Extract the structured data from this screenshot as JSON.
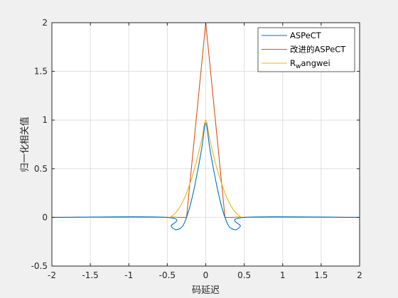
{
  "chart_data": {
    "type": "line",
    "xlabel": "码延迟",
    "ylabel": "归一化相关值",
    "xlim": [
      -2,
      2
    ],
    "ylim": [
      -0.5,
      2
    ],
    "xticks": [
      -2,
      -1.5,
      -1,
      -0.5,
      0,
      0.5,
      1,
      1.5,
      2
    ],
    "xtick_labels": [
      "-2",
      "-1.5",
      "-1",
      "-0.5",
      "0",
      "0.5",
      "1",
      "1.5",
      "2"
    ],
    "yticks": [
      -0.5,
      0,
      0.5,
      1,
      1.5,
      2
    ],
    "ytick_labels": [
      "-0.5",
      "0",
      "0.5",
      "1",
      "1.5",
      "2"
    ],
    "grid": true,
    "legend_position": "top-right",
    "series": [
      {
        "name": "ASPeCT",
        "color": "#0072BD",
        "x": [
          -2,
          -0.5,
          -0.45,
          -0.4,
          -0.375,
          -0.35,
          -0.3,
          -0.25,
          -0.2,
          -0.15,
          -0.1,
          -0.05,
          0,
          0.05,
          0.1,
          0.15,
          0.2,
          0.25,
          0.3,
          0.35,
          0.375,
          0.4,
          0.45,
          0.5,
          2
        ],
        "y": [
          0,
          0,
          -0.09,
          -0.125,
          -0.125,
          -0.12,
          -0.09,
          0,
          0.13,
          0.3,
          0.5,
          0.72,
          0.97,
          0.72,
          0.5,
          0.3,
          0.13,
          0,
          -0.09,
          -0.12,
          -0.125,
          -0.125,
          -0.09,
          0,
          0
        ]
      },
      {
        "name": "改进的ASPeCT",
        "color": "#D95319",
        "x": [
          -2,
          -0.25,
          0,
          0.25,
          2
        ],
        "y": [
          0,
          0,
          2,
          0,
          0
        ]
      },
      {
        "name": "R_wangwei",
        "color": "#EDB120",
        "x": [
          -2,
          -0.5,
          -0.45,
          -0.4,
          -0.35,
          -0.3,
          -0.25,
          -0.2,
          -0.15,
          -0.1,
          -0.05,
          0,
          0.05,
          0.1,
          0.15,
          0.2,
          0.25,
          0.3,
          0.35,
          0.4,
          0.45,
          0.5,
          2
        ],
        "y": [
          0,
          0,
          0.01,
          0.04,
          0.09,
          0.16,
          0.25,
          0.36,
          0.49,
          0.64,
          0.81,
          1,
          0.81,
          0.64,
          0.49,
          0.36,
          0.25,
          0.16,
          0.09,
          0.04,
          0.01,
          0,
          0
        ]
      }
    ]
  },
  "colors": {
    "background": "#f0f0f0",
    "axes_bg": "#ffffff",
    "axis": "#262626",
    "grid": "#dfdfdf"
  }
}
